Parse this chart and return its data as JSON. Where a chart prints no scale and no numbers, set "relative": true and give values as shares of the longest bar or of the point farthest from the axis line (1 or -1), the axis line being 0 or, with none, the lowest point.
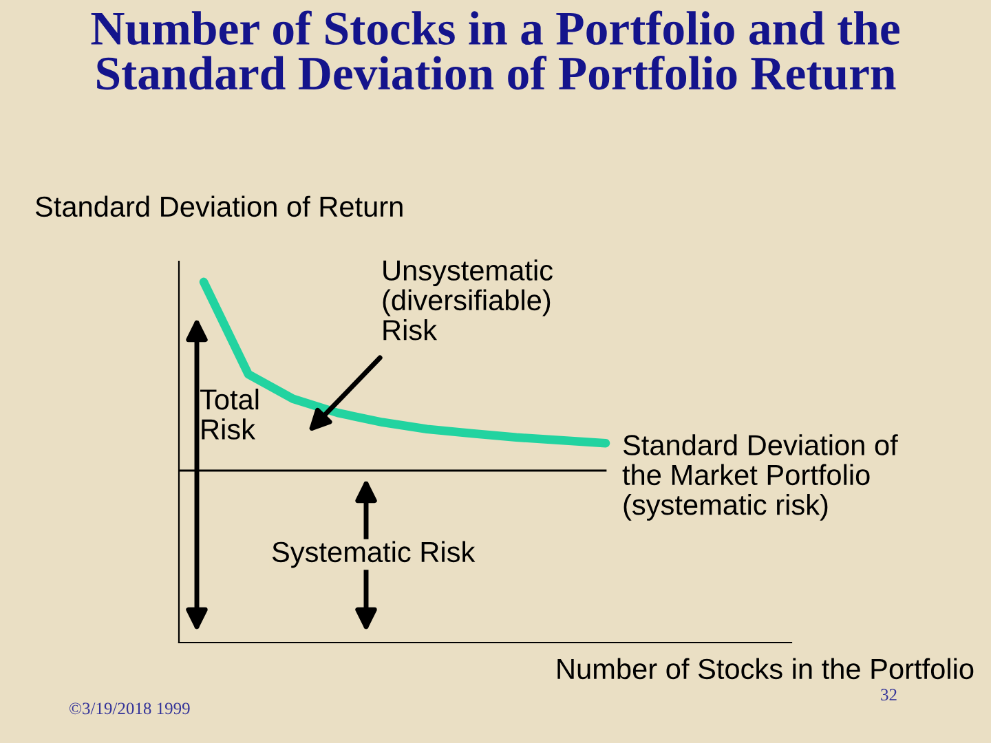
{
  "chart_data": {
    "type": "line",
    "title": "Number of Stocks in a Portfolio and the\nStandard Deviation of Portfolio Return",
    "ylabel": "Standard Deviation of Return",
    "xlabel": "Number of Stocks in the Portfolio",
    "relative": true,
    "categories": [
      null,
      null,
      null,
      null,
      null,
      null,
      null,
      null,
      null,
      null
    ],
    "series": [
      {
        "color": "#22d3a0",
        "values": [
          1.0,
          0.744,
          0.676,
          0.637,
          0.611,
          0.592,
          0.58,
          0.569,
          0.561,
          0.553
        ]
      }
    ],
    "marker": "none",
    "line_style": "solid",
    "ref_lines": [
      {
        "axis": "y",
        "value": 0.477,
        "color": "#000000"
      }
    ],
    "annotations": [
      "Unsystematic\n(diversifiable)\nRisk",
      "Total\nRisk",
      "Standard Deviation of\nthe Market Portfolio\n(systematic risk)",
      "Systematic Risk",
      "©3/19/2018 1999",
      "32"
    ]
  }
}
